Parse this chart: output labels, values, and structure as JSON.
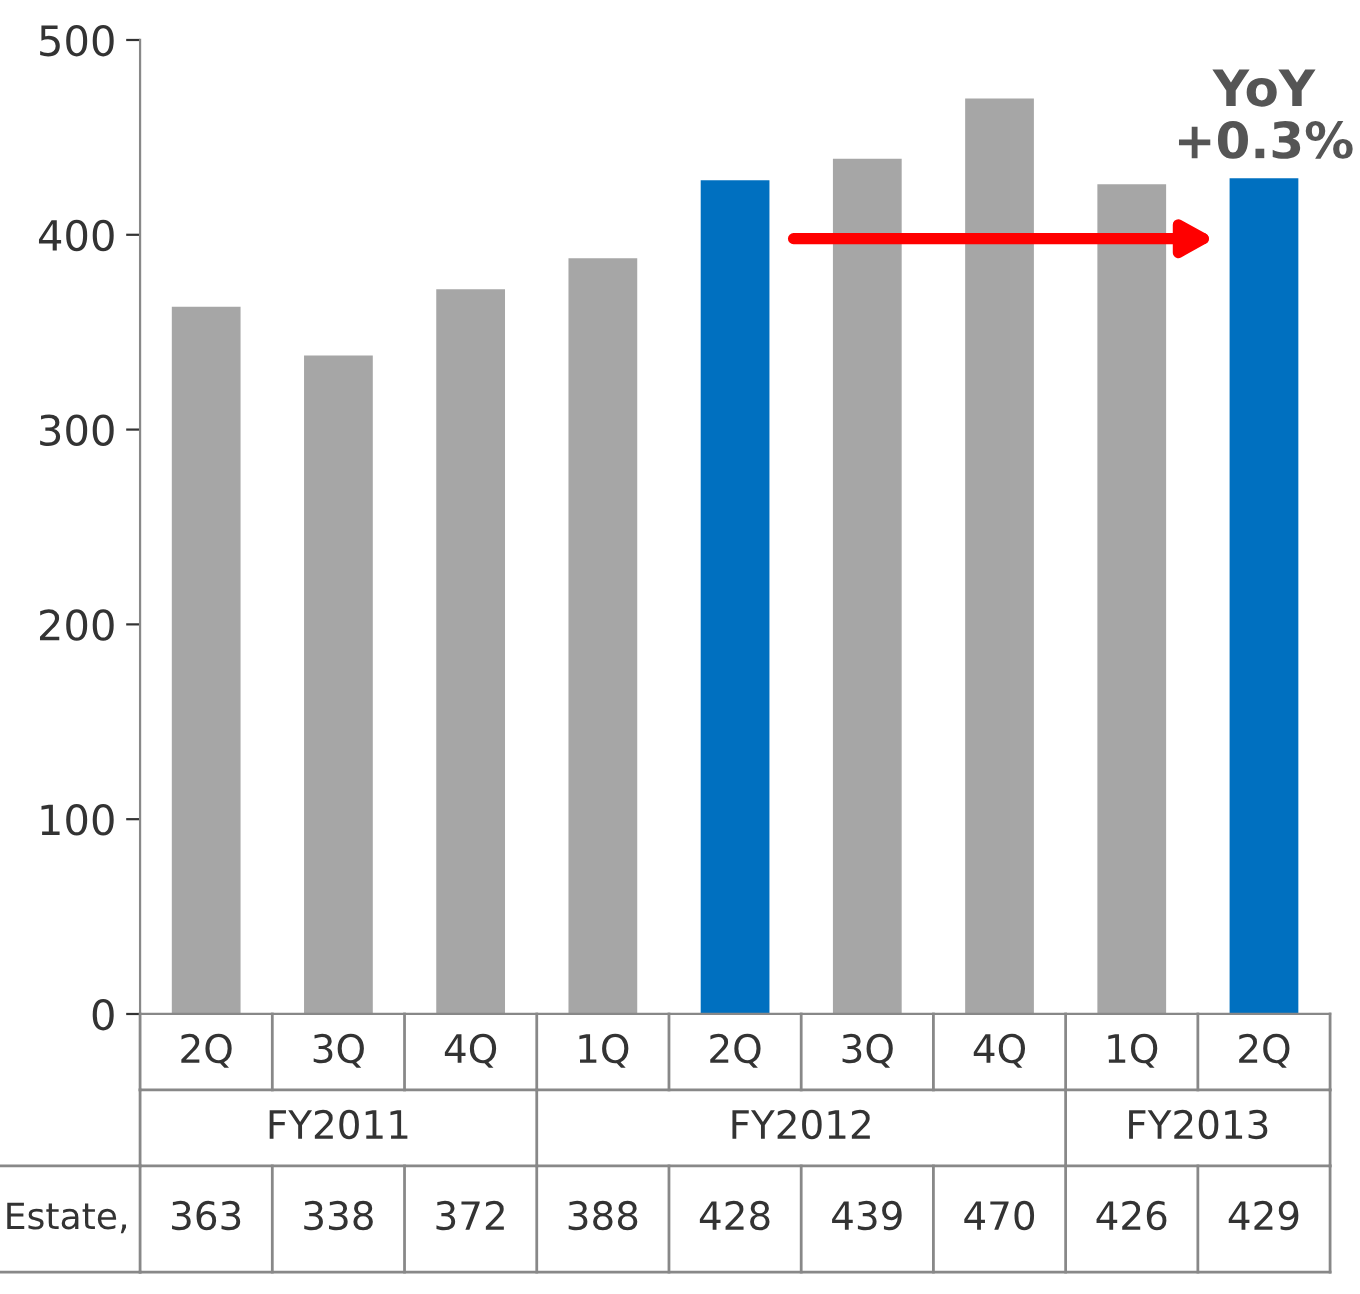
{
  "chart_data": {
    "type": "bar",
    "categories": [
      "2Q",
      "3Q",
      "4Q",
      "1Q",
      "2Q",
      "3Q",
      "4Q",
      "1Q",
      "2Q"
    ],
    "values": [
      363,
      338,
      372,
      388,
      428,
      439,
      470,
      426,
      429
    ],
    "colors": [
      "#a6a6a6",
      "#a6a6a6",
      "#a6a6a6",
      "#a6a6a6",
      "#0070c0",
      "#a6a6a6",
      "#a6a6a6",
      "#a6a6a6",
      "#0070c0"
    ],
    "ylim": [
      0,
      500
    ],
    "yticks": [
      0,
      100,
      200,
      300,
      400,
      500
    ],
    "data_labels": true,
    "grid": false,
    "annotations": [
      "YoY\n+0.3%",
      "FY2011",
      "FY2012",
      "FY2013",
      "Estate,"
    ]
  }
}
